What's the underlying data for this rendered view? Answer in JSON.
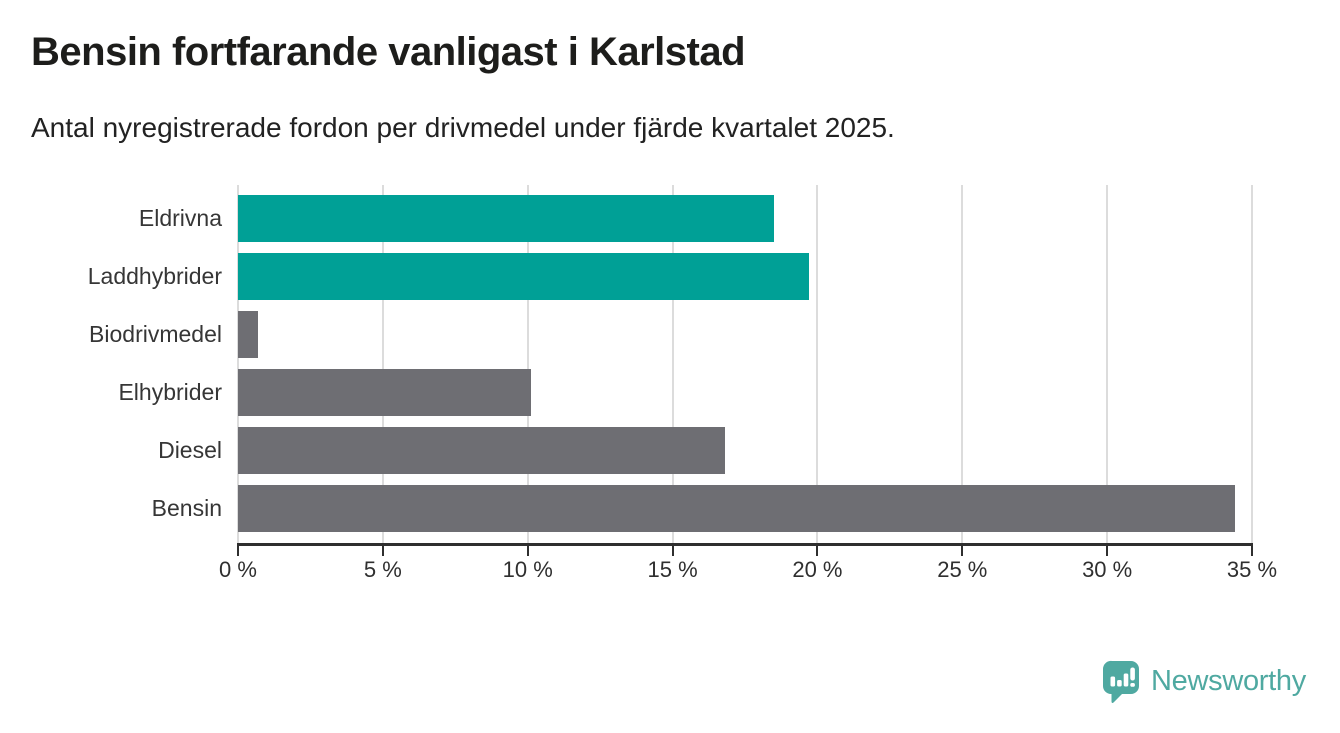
{
  "header": {
    "title": "Bensin fortfarande vanligast i Karlstad",
    "subtitle": "Antal nyregistrerade fordon per drivmedel under fjärde kvartalet 2025."
  },
  "chart_data": {
    "type": "bar",
    "orientation": "horizontal",
    "title": "Bensin fortfarande vanligast i Karlstad",
    "subtitle": "Antal nyregistrerade fordon per drivmedel under fjärde kvartalet 2025.",
    "categories": [
      "Eldrivna",
      "Laddhybrider",
      "Biodrivmedel",
      "Elhybrider",
      "Diesel",
      "Bensin"
    ],
    "values": [
      18.5,
      19.7,
      0.7,
      10.1,
      16.8,
      34.4
    ],
    "unit": "%",
    "xlim": [
      0,
      35
    ],
    "x_tick_values": [
      0,
      5,
      10,
      15,
      20,
      25,
      30,
      35
    ],
    "x_tick_labels": [
      "0 %",
      "5 %",
      "10 %",
      "15 %",
      "20 %",
      "25 %",
      "30 %",
      "35 %"
    ],
    "grid": true,
    "legend": false,
    "bar_colors": [
      "#00a096",
      "#00a096",
      "#6e6e73",
      "#6e6e73",
      "#6e6e73",
      "#6e6e73"
    ],
    "highlight_color": "#00a096",
    "default_color": "#6e6e73",
    "grid_color": "#dcdcdc",
    "axis_color": "#2f2f2f"
  },
  "branding": {
    "logo_text": "Newsworthy",
    "logo_color": "#4fa9a1"
  }
}
